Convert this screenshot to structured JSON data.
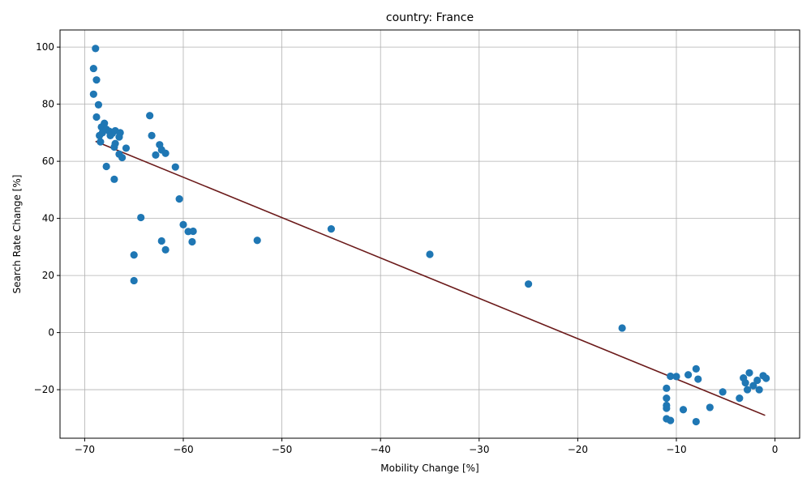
{
  "chart_data": {
    "type": "scatter",
    "title": "country: France",
    "xlabel": "Mobility Change [%]",
    "ylabel": "Search Rate Change [%]",
    "xlim": [
      -72.5,
      2.5
    ],
    "ylim": [
      -37,
      106
    ],
    "xticks": [
      -70,
      -60,
      -50,
      -40,
      -30,
      -20,
      -10,
      0
    ],
    "yticks": [
      -20,
      0,
      20,
      40,
      60,
      80,
      100
    ],
    "grid": true,
    "point_color": "#1f77b4",
    "line_color": "#6b1a1a",
    "points": [
      [
        -68.9,
        99.5
      ],
      [
        -69.1,
        92.5
      ],
      [
        -68.8,
        88.5
      ],
      [
        -69.1,
        83.5
      ],
      [
        -68.6,
        79.8
      ],
      [
        -68.8,
        75.5
      ],
      [
        -68.3,
        72.0
      ],
      [
        -68.0,
        73.3
      ],
      [
        -68.5,
        69.0
      ],
      [
        -68.2,
        70.0
      ],
      [
        -67.8,
        71.2
      ],
      [
        -67.5,
        70.5
      ],
      [
        -67.2,
        69.8
      ],
      [
        -67.4,
        69.0
      ],
      [
        -66.9,
        70.7
      ],
      [
        -66.5,
        68.5
      ],
      [
        -66.4,
        70.0
      ],
      [
        -68.4,
        66.8
      ],
      [
        -67.0,
        65.0
      ],
      [
        -66.9,
        66.2
      ],
      [
        -66.5,
        62.5
      ],
      [
        -66.2,
        61.3
      ],
      [
        -65.8,
        64.6
      ],
      [
        -67.8,
        58.2
      ],
      [
        -67.0,
        53.7
      ],
      [
        -63.4,
        76.0
      ],
      [
        -63.2,
        69.0
      ],
      [
        -62.8,
        62.2
      ],
      [
        -62.4,
        65.8
      ],
      [
        -62.2,
        64.0
      ],
      [
        -61.8,
        62.8
      ],
      [
        -60.8,
        58.0
      ],
      [
        -60.4,
        46.8
      ],
      [
        -60.0,
        37.8
      ],
      [
        -59.5,
        35.4
      ],
      [
        -59.0,
        35.5
      ],
      [
        -59.1,
        31.8
      ],
      [
        -64.3,
        40.3
      ],
      [
        -62.2,
        32.1
      ],
      [
        -61.8,
        29.0
      ],
      [
        -65.0,
        27.2
      ],
      [
        -65.0,
        18.2
      ],
      [
        -52.5,
        32.3
      ],
      [
        -45.0,
        36.3
      ],
      [
        -35.0,
        27.4
      ],
      [
        -25.0,
        17.0
      ],
      [
        -15.5,
        1.6
      ],
      [
        -11.0,
        -19.5
      ],
      [
        -11.0,
        -23.0
      ],
      [
        -11.0,
        -25.5
      ],
      [
        -11.0,
        -26.5
      ],
      [
        -11.0,
        -30.2
      ],
      [
        -10.6,
        -30.8
      ],
      [
        -10.6,
        -15.3
      ],
      [
        -10.0,
        -15.4
      ],
      [
        -9.3,
        -27.0
      ],
      [
        -8.8,
        -14.8
      ],
      [
        -8.0,
        -12.7
      ],
      [
        -7.8,
        -16.3
      ],
      [
        -8.0,
        -31.2
      ],
      [
        -6.6,
        -26.2
      ],
      [
        -5.3,
        -20.8
      ],
      [
        -3.6,
        -23.0
      ],
      [
        -3.2,
        -15.9
      ],
      [
        -3.0,
        -17.6
      ],
      [
        -2.8,
        -20.0
      ],
      [
        -2.6,
        -14.1
      ],
      [
        -2.2,
        -18.6
      ],
      [
        -1.8,
        -16.7
      ],
      [
        -1.6,
        -20.0
      ],
      [
        -1.2,
        -15.1
      ],
      [
        -0.9,
        -16.0
      ]
    ],
    "trendline": [
      [
        -68.9,
        67.0
      ],
      [
        -1.0,
        -29.0
      ]
    ]
  }
}
